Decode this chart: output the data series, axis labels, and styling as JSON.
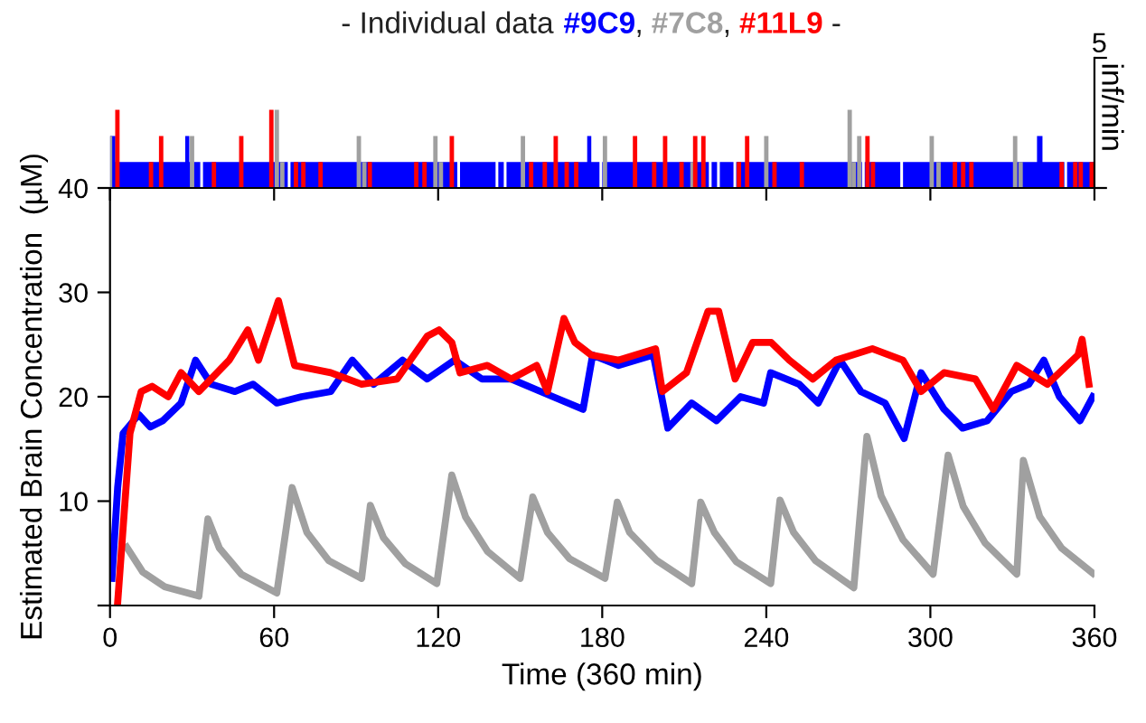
{
  "chart_data": [
    {
      "type": "bar",
      "title": "- Individual data #9C9, #7C8, #11L9 -",
      "ylabel": "inf/min",
      "xlim": [
        0,
        360
      ],
      "xticks": [
        {
          "value": 0,
          "label": null
        },
        {
          "value": 60,
          "label": null
        },
        {
          "value": 120,
          "label": null
        },
        {
          "value": 180,
          "label": null
        },
        {
          "value": 240,
          "label": null
        },
        {
          "value": 300,
          "label": null
        },
        {
          "value": 360,
          "label": null
        }
      ],
      "ylim": [
        0,
        5
      ],
      "yticks": [
        {
          "value": 0,
          "label": null
        },
        5
      ],
      "tick_labels": "y",
      "grid": false,
      "legend": false,
      "series": [
        {
          "type": "area",
          "color": "#0000ff",
          "x": [
            0,
            2,
            27.5,
            29,
            33,
            34,
            65,
            66,
            127,
            128,
            141,
            142,
            144,
            145,
            174.5,
            176,
            179,
            180,
            219,
            220,
            222,
            223,
            228,
            229,
            275,
            276,
            289,
            290,
            339,
            341,
            349,
            350,
            360
          ],
          "values": [
            2,
            1,
            2,
            1,
            0,
            1,
            0,
            1,
            0,
            1,
            0,
            1,
            0,
            1,
            2,
            1,
            0,
            1,
            0,
            1,
            0,
            1,
            0,
            1,
            0,
            1,
            0,
            1,
            2,
            1,
            0,
            1,
            1
          ]
        },
        {
          "type": "bar",
          "color": "#a0a0a0",
          "x": [
            0,
            30,
            61,
            63,
            91,
            93,
            119,
            121,
            151,
            181,
            213,
            240,
            270.5,
            272,
            274,
            300.5,
            303,
            331,
            333
          ],
          "values": [
            2,
            2,
            3,
            1,
            2,
            1,
            2,
            1,
            2,
            2,
            1,
            2,
            3,
            1,
            2,
            2,
            1,
            2,
            1
          ]
        },
        {
          "type": "bar",
          "color": "#ff0000",
          "x": [
            2.7,
            15,
            18.7,
            38,
            48,
            59,
            68,
            70.7,
            77,
            95,
            112,
            115,
            125,
            154,
            159,
            163,
            167,
            170.5,
            192,
            199,
            203,
            209,
            214,
            217,
            230,
            233,
            243,
            253,
            277,
            279,
            309,
            312,
            315,
            348,
            353,
            355,
            359
          ],
          "values": [
            3,
            1,
            2,
            1,
            2,
            3,
            1,
            1,
            1,
            1,
            1,
            1,
            2,
            1,
            1,
            2,
            1,
            1,
            2,
            1,
            2,
            1,
            2,
            2,
            1,
            2,
            1,
            1,
            2,
            1,
            1,
            1,
            1,
            1,
            1,
            1,
            1
          ]
        }
      ]
    },
    {
      "type": "line",
      "xlabel": "Time (360 min)",
      "ylabel": "Estimated Brain Concentration  (µM)",
      "xlim": [
        0,
        360
      ],
      "xticks": [
        0,
        60,
        120,
        180,
        240,
        300,
        360
      ],
      "ylim": [
        0,
        40
      ],
      "yticks": [
        {
          "value": 0,
          "label": null
        },
        10,
        20,
        30,
        40
      ],
      "grid": false,
      "legend": false,
      "marker": "none",
      "line_style": "solid",
      "series": [
        {
          "color": "#0000ff",
          "x": [
            0.7,
            2.8,
            4.8,
            10.5,
            14.7,
            19.3,
            26,
            31.3,
            37,
            45.7,
            52.3,
            61,
            70,
            80.7,
            88.6,
            96.4,
            107,
            116,
            126,
            136,
            146.7,
            162,
            173,
            176.5,
            186,
            198.7,
            204,
            212.7,
            221.8,
            230.6,
            239,
            241.6,
            252,
            259,
            267,
            274.6,
            283.4,
            290.4,
            296.6,
            305,
            311.8,
            320.8,
            329.6,
            336,
            341.5,
            347.2,
            354.7,
            359.4
          ],
          "values": [
            2.6,
            11.3,
            16.5,
            18.3,
            17.1,
            17.7,
            19.4,
            23.5,
            21.2,
            20.5,
            21.2,
            19.4,
            20,
            20.5,
            23.5,
            21.2,
            23.5,
            21.7,
            23.5,
            21.7,
            21.7,
            20,
            18.8,
            24,
            23,
            24,
            17,
            19.4,
            17.7,
            20,
            19.4,
            22.3,
            21.2,
            19.4,
            23.5,
            20.5,
            19.4,
            16,
            22.3,
            18.8,
            17,
            17.7,
            20.5,
            21.2,
            23.5,
            20,
            17.7,
            20
          ]
        },
        {
          "color": "#a0a0a0",
          "x": [
            6.1,
            12,
            20,
            32.5,
            35.8,
            40,
            48,
            61,
            66.6,
            72,
            80,
            92,
            95.2,
            100,
            108,
            119.5,
            125,
            130,
            138,
            150,
            154.6,
            160,
            168,
            181,
            185.5,
            190,
            200,
            212.7,
            216,
            221,
            229,
            241.6,
            245,
            250,
            258,
            272,
            276.8,
            282,
            290,
            301,
            306.5,
            312,
            320,
            331.6,
            334,
            340,
            348,
            359.4
          ],
          "values": [
            5.6,
            3.2,
            1.8,
            0.9,
            8.3,
            5.5,
            3,
            1.2,
            11.3,
            7,
            4.3,
            2.6,
            9.6,
            6.5,
            4,
            2.1,
            12.5,
            8.5,
            5.2,
            2.6,
            10.4,
            7,
            4.5,
            2.6,
            9.9,
            7,
            4.3,
            2.1,
            9.9,
            7,
            4.2,
            2.1,
            10.1,
            7,
            4.3,
            1.7,
            16.2,
            10.5,
            6.3,
            3,
            14.4,
            9.5,
            6,
            3,
            13.9,
            8.5,
            5.5,
            3.1
          ]
        },
        {
          "color": "#ff0000",
          "x": [
            2.8,
            7.3,
            11.4,
            15.4,
            21.3,
            26,
            32.5,
            43.6,
            50.4,
            54.3,
            61.6,
            67.5,
            80.7,
            92,
            105,
            116,
            120.3,
            125,
            128,
            138,
            146.7,
            156,
            160,
            166,
            170,
            176,
            186,
            199.5,
            202,
            210.8,
            218.7,
            222.6,
            228.6,
            235,
            241.8,
            248.4,
            257,
            265.5,
            278.8,
            290,
            296.6,
            305,
            316.5,
            323,
            331.6,
            342.8,
            354,
            355.5,
            358
          ],
          "values": [
            0.3,
            16.5,
            20.5,
            21,
            20,
            22.3,
            20.5,
            23.5,
            26.4,
            23.5,
            29.2,
            23,
            22.3,
            21.2,
            21.7,
            25.8,
            26.4,
            25.2,
            22.3,
            23,
            21.7,
            23,
            20.5,
            27.5,
            25.2,
            24,
            23.5,
            24.6,
            20.5,
            22.3,
            28.2,
            28.2,
            21.7,
            25.2,
            25.2,
            23.5,
            21.7,
            23.5,
            24.6,
            23.5,
            20.5,
            22.3,
            21.7,
            18.8,
            23,
            21.2,
            24,
            25.5,
            21.2
          ]
        }
      ]
    }
  ]
}
